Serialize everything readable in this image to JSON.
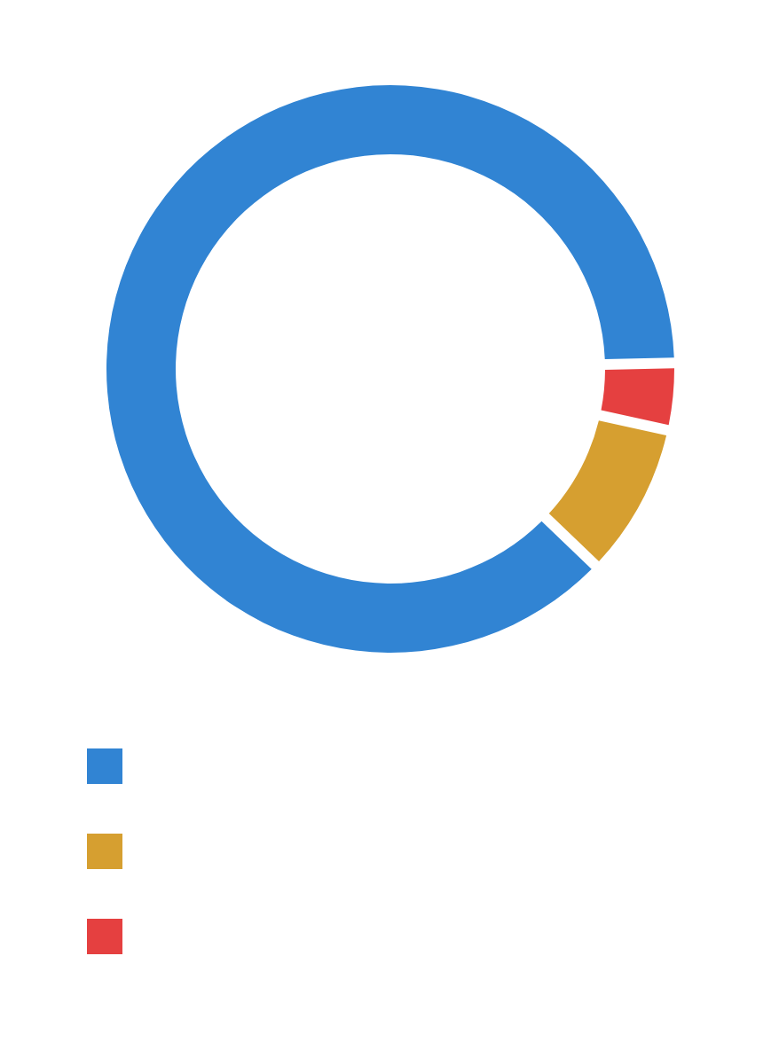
{
  "chart_data": {
    "type": "donut",
    "categories": [
      null,
      null,
      null
    ],
    "values": [
      87.5,
      8.7,
      3.8
    ],
    "colors": [
      "#3184d3",
      "#d69f30",
      "#e54040"
    ]
  }
}
